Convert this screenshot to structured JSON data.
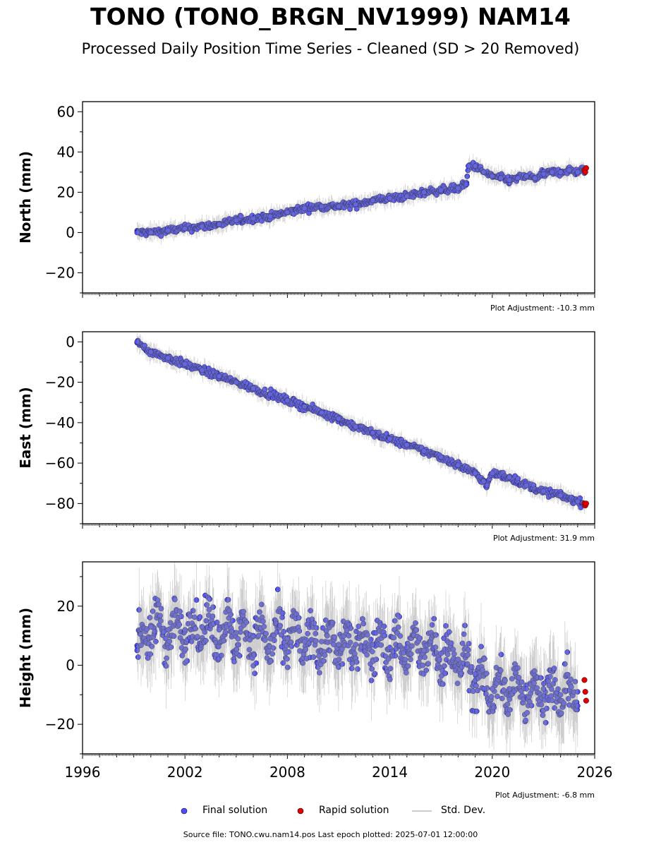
{
  "header": {
    "title": "TONO (TONO_BRGN_NV1999) NAM14",
    "subtitle": "Processed Daily Position Time Series - Cleaned (SD > 20 Removed)"
  },
  "legend": {
    "final_label": "Final solution",
    "rapid_label": "Rapid solution",
    "std_label": "Std. Dev."
  },
  "footer": {
    "source": "Source file: TONO.cwu.nam14.pos  Last epoch plotted: 2025-07-01 12:00:00"
  },
  "colors": {
    "final": "#4d4dff",
    "rapid": "#e00000",
    "std": "#999999"
  },
  "chart_data": [
    {
      "type": "scatter",
      "ylabel": "North (mm)",
      "adjustment": "Plot Adjustment: -10.3 mm",
      "xlim": [
        1996,
        2026
      ],
      "ylim": [
        -30,
        65
      ],
      "yticks": [
        -20,
        0,
        20,
        40,
        60
      ],
      "ytick_labels": [
        "−20",
        "0",
        "20",
        "40",
        "60"
      ],
      "xticks": [
        1996,
        2002,
        2008,
        2014,
        2020,
        2026
      ],
      "xtick_labels": [
        "1996",
        "2002",
        "2008",
        "2014",
        "2020",
        "2026"
      ],
      "show_xtick_labels": false,
      "series": [
        {
          "name": "Final solution",
          "x": [
            1999.2,
            2000.0,
            2001.0,
            2002.0,
            2003.0,
            2004.0,
            2005.0,
            2006.0,
            2007.0,
            2008.0,
            2009.0,
            2010.0,
            2011.0,
            2012.0,
            2013.0,
            2014.0,
            2015.0,
            2016.0,
            2017.0,
            2018.0,
            2018.5,
            2018.6,
            2019.0,
            2019.5,
            2020.0,
            2020.5,
            2021.0,
            2021.5,
            2022.0,
            2022.5,
            2023.0,
            2023.5,
            2024.0,
            2024.5,
            2025.0,
            2025.4
          ],
          "y": [
            0,
            0,
            1,
            2,
            3,
            4,
            6,
            7,
            8,
            10,
            12,
            13,
            13,
            14,
            16,
            17,
            18,
            20,
            21,
            22,
            24,
            33,
            33,
            30,
            28,
            27,
            26,
            27,
            28,
            27,
            29,
            30,
            30,
            31,
            30,
            31
          ]
        },
        {
          "name": "Rapid solution",
          "x": [
            2025.4,
            2025.45,
            2025.5
          ],
          "y": [
            31,
            30,
            32
          ]
        }
      ]
    },
    {
      "type": "scatter",
      "ylabel": "East (mm)",
      "adjustment": "Plot Adjustment: 31.9 mm",
      "xlim": [
        1996,
        2026
      ],
      "ylim": [
        -90,
        5
      ],
      "yticks": [
        -80,
        -60,
        -40,
        -20,
        0
      ],
      "ytick_labels": [
        "−80",
        "−60",
        "−40",
        "−20",
        "0"
      ],
      "xticks": [
        1996,
        2002,
        2008,
        2014,
        2020,
        2026
      ],
      "xtick_labels": [
        "1996",
        "2002",
        "2008",
        "2014",
        "2020",
        "2026"
      ],
      "show_xtick_labels": false,
      "series": [
        {
          "name": "Final solution",
          "x": [
            1999.2,
            2000.0,
            2001.0,
            2002.0,
            2003.0,
            2004.0,
            2005.0,
            2006.0,
            2007.0,
            2008.0,
            2009.0,
            2010.0,
            2011.0,
            2012.0,
            2013.0,
            2014.0,
            2015.0,
            2016.0,
            2017.0,
            2018.0,
            2019.0,
            2019.5,
            2019.7,
            2020.0,
            2021.0,
            2022.0,
            2023.0,
            2024.0,
            2025.0,
            2025.4
          ],
          "y": [
            0,
            -5,
            -8,
            -11,
            -14,
            -17,
            -20,
            -23,
            -26,
            -29,
            -32,
            -35,
            -38,
            -42,
            -45,
            -48,
            -51,
            -54,
            -57,
            -61,
            -65,
            -69,
            -71,
            -65,
            -67,
            -71,
            -74,
            -76,
            -79,
            -80
          ]
        },
        {
          "name": "Rapid solution",
          "x": [
            2025.4,
            2025.45,
            2025.5
          ],
          "y": [
            -80,
            -81,
            -80
          ]
        }
      ]
    },
    {
      "type": "scatter",
      "ylabel": "Height (mm)",
      "adjustment": "Plot Adjustment: -6.8 mm",
      "xlim": [
        1996,
        2026
      ],
      "ylim": [
        -30,
        35
      ],
      "yticks": [
        -20,
        0,
        20
      ],
      "ytick_labels": [
        "−20",
        "0",
        "20"
      ],
      "xticks": [
        1996,
        2002,
        2008,
        2014,
        2020,
        2026
      ],
      "xtick_labels": [
        "1996",
        "2002",
        "2008",
        "2014",
        "2020",
        "2026"
      ],
      "show_xtick_labels": true,
      "series": [
        {
          "name": "Final solution",
          "x": [
            1999.2,
            2000.0,
            2001.0,
            2002.0,
            2003.0,
            2004.0,
            2005.0,
            2006.0,
            2007.0,
            2008.0,
            2009.0,
            2010.0,
            2011.0,
            2012.0,
            2013.0,
            2014.0,
            2015.0,
            2016.0,
            2017.0,
            2018.0,
            2019.0,
            2019.5,
            2020.0,
            2021.0,
            2022.0,
            2023.0,
            2024.0,
            2025.0
          ],
          "y": [
            5,
            13,
            12,
            12,
            13,
            12,
            11,
            10,
            9,
            9,
            8,
            8,
            7,
            7,
            7,
            6,
            6,
            5,
            4,
            2,
            -3,
            -8,
            -8,
            -8,
            -8,
            -8,
            -10,
            -9
          ]
        },
        {
          "name": "Rapid solution",
          "x": [
            2025.4,
            2025.45,
            2025.5
          ],
          "y": [
            -5,
            -9,
            -12
          ]
        }
      ]
    }
  ]
}
